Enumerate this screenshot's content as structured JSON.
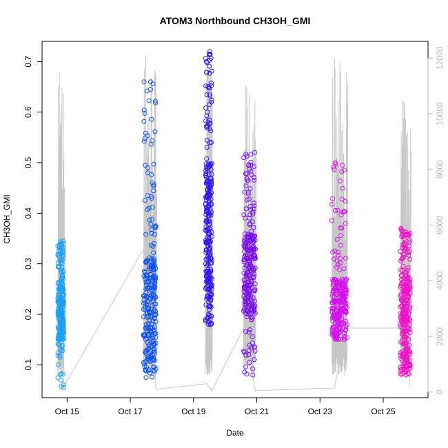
{
  "chart_data": {
    "type": "scatter",
    "title": "ATOM3 Northbound CH3OH_GMI",
    "xlabel": "Date",
    "ylabel": "CH3OH_GMI",
    "xlim": [
      "2017-10-14T05:00",
      "2017-10-26T10:00"
    ],
    "ylim": [
      0.035,
      0.74
    ],
    "y2lim": [
      -200,
      12600
    ],
    "x_ticks": [
      {
        "date": "2017-10-15",
        "label": "Oct 15"
      },
      {
        "date": "2017-10-17",
        "label": "Oct 17"
      },
      {
        "date": "2017-10-19",
        "label": "Oct 19"
      },
      {
        "date": "2017-10-21",
        "label": "Oct 21"
      },
      {
        "date": "2017-10-23",
        "label": "Oct 23"
      },
      {
        "date": "2017-10-25",
        "label": "Oct 25"
      }
    ],
    "y_ticks": [
      "0.1",
      "0.2",
      "0.3",
      "0.4",
      "0.5",
      "0.6",
      "0.7"
    ],
    "y2_ticks": [
      "0",
      "2000",
      "4000",
      "6000",
      "8000",
      "10000",
      "12000"
    ],
    "secondary_axis_color": "#b8b8b8",
    "altitude_line_color": "#c8c8c8",
    "grid": false,
    "legend": "none",
    "flights": [
      {
        "start": "2017-10-14T17:00",
        "end": "2017-10-14T21:30",
        "color": "#1ca0f5",
        "core": [
          0.15,
          0.27
        ],
        "min": 0.055,
        "max": 0.345,
        "alt_max": 11500
      },
      {
        "start": "2017-10-17T10:00",
        "end": "2017-10-17T19:30",
        "color": "#0b50f2",
        "core": [
          0.11,
          0.31
        ],
        "min": 0.075,
        "max": 0.66,
        "alt_max": 12100
      },
      {
        "start": "2017-10-19T09:00",
        "end": "2017-10-19T14:00",
        "color": "#2d14f5",
        "core": [
          0.23,
          0.5
        ],
        "min": 0.18,
        "max": 0.72,
        "alt_max": 12100
      },
      {
        "start": "2017-10-20T14:00",
        "end": "2017-10-20T23:00",
        "color": "#7a0cf0",
        "core": [
          0.2,
          0.36
        ],
        "min": 0.08,
        "max": 0.52,
        "alt_max": 11000
      },
      {
        "start": "2017-10-23T09:00",
        "end": "2017-10-23T20:30",
        "color": "#d40ef0",
        "core": [
          0.17,
          0.27
        ],
        "min": 0.15,
        "max": 0.5,
        "alt_max": 12000
      },
      {
        "start": "2017-10-25T13:00",
        "end": "2017-10-25T20:30",
        "color": "#f20cc8",
        "core": [
          0.1,
          0.29
        ],
        "min": 0.08,
        "max": 0.37,
        "alt_max": 10500
      }
    ],
    "altitude_track": [
      {
        "t": "2017-10-14T17:00",
        "alt": 2400
      },
      {
        "t": "2017-10-14T21:30",
        "alt": 200
      },
      {
        "t": "2017-10-17T12:00",
        "alt": 5300
      },
      {
        "t": "2017-10-17T19:30",
        "alt": 100
      },
      {
        "t": "2017-10-19T10:00",
        "alt": 300
      },
      {
        "t": "2017-10-19T14:00",
        "alt": 50
      },
      {
        "t": "2017-10-20T14:00",
        "alt": 2300
      },
      {
        "t": "2017-10-20T23:00",
        "alt": 50
      },
      {
        "t": "2017-10-23T11:00",
        "alt": 150
      },
      {
        "t": "2017-10-23T20:00",
        "alt": 2300
      },
      {
        "t": "2017-10-25T15:00",
        "alt": 2300
      },
      {
        "t": "2017-10-25T20:30",
        "alt": 200
      }
    ]
  }
}
